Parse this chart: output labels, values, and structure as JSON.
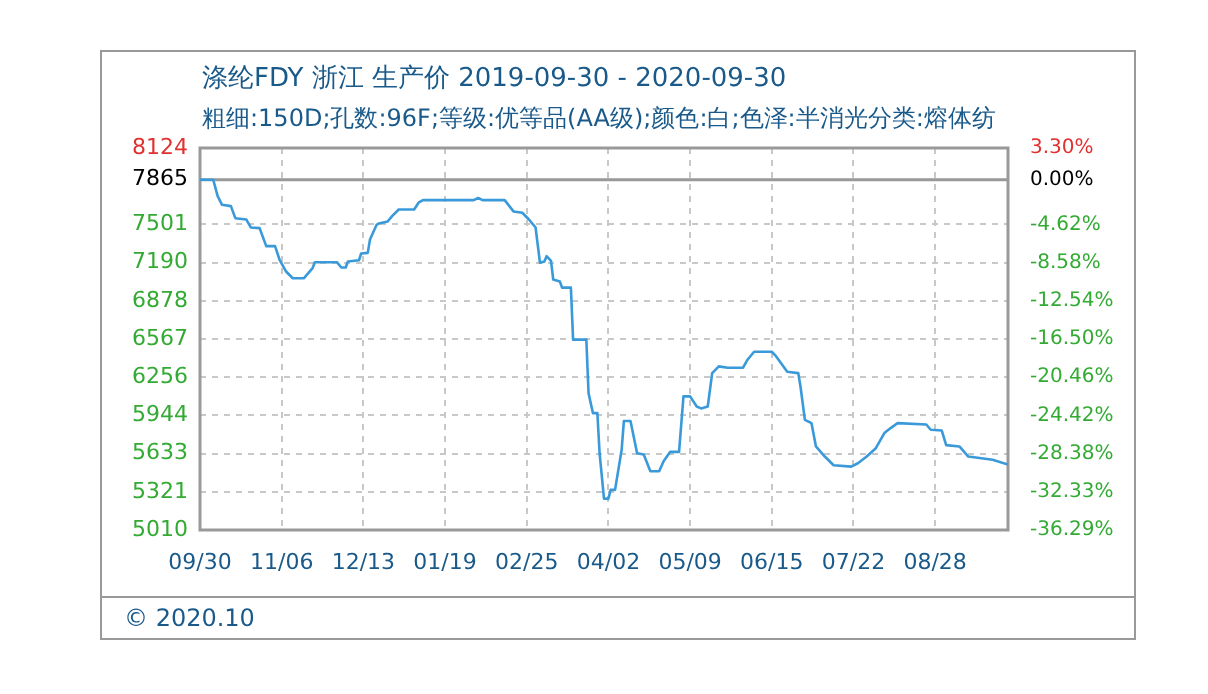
{
  "chart_data": {
    "type": "line",
    "title": "涤纶FDY 浙江 生产价 2019-09-30 - 2020-09-30",
    "subtitle": "粗细:150D;孔数:96F;等级:优等品(AA级);颜色:白;色泽:半消光分类:熔体纺",
    "annotations": [
      "© 2020.10"
    ],
    "x": [
      "2019-09-30",
      "2019-10-06",
      "2019-10-08",
      "2019-10-10",
      "2019-10-14",
      "2019-10-16",
      "2019-10-21",
      "2019-10-23",
      "2019-10-27",
      "2019-10-30",
      "2019-11-03",
      "2019-11-05",
      "2019-11-08",
      "2019-11-11",
      "2019-11-16",
      "2019-11-20",
      "2019-11-21",
      "2019-12-01",
      "2019-12-03",
      "2019-12-05",
      "2019-12-06",
      "2019-12-11",
      "2019-12-12",
      "2019-12-15",
      "2019-12-16",
      "2019-12-19",
      "2019-12-20",
      "2019-12-24",
      "2019-12-26",
      "2019-12-29",
      "2020-01-05",
      "2020-01-07",
      "2020-01-09",
      "2020-02-01",
      "2020-02-03",
      "2020-02-05",
      "2020-02-15",
      "2020-02-19",
      "2020-02-23",
      "2020-02-26",
      "2020-02-29",
      "2020-03-02",
      "2020-03-04",
      "2020-03-05",
      "2020-03-07",
      "2020-03-08",
      "2020-03-11",
      "2020-03-12",
      "2020-03-16",
      "2020-03-17",
      "2020-03-23",
      "2020-03-24",
      "2020-03-25",
      "2020-03-26",
      "2020-03-28",
      "2020-03-29",
      "2020-03-31",
      "2020-04-02",
      "2020-04-03",
      "2020-04-05",
      "2020-04-08",
      "2020-04-09",
      "2020-04-12",
      "2020-04-15",
      "2020-04-18",
      "2020-04-21",
      "2020-04-25",
      "2020-04-27",
      "2020-04-30",
      "2020-05-04",
      "2020-05-06",
      "2020-05-09",
      "2020-05-12",
      "2020-05-14",
      "2020-05-17",
      "2020-05-19",
      "2020-05-22",
      "2020-05-26",
      "2020-06-02",
      "2020-06-04",
      "2020-06-07",
      "2020-06-15",
      "2020-06-17",
      "2020-06-22",
      "2020-06-27",
      "2020-06-28",
      "2020-06-30",
      "2020-07-03",
      "2020-07-05",
      "2020-07-09",
      "2020-07-13",
      "2020-07-21",
      "2020-07-24",
      "2020-07-28",
      "2020-08-01",
      "2020-08-05",
      "2020-08-08",
      "2020-08-11",
      "2020-08-24",
      "2020-08-26",
      "2020-08-31",
      "2020-09-02",
      "2020-09-08",
      "2020-09-12",
      "2020-09-23",
      "2020-09-30"
    ],
    "series": [
      {
        "color": "#3a9ad9",
        "values": [
          7865,
          7865,
          7732,
          7661,
          7650,
          7552,
          7541,
          7476,
          7471,
          7324,
          7324,
          7215,
          7117,
          7062,
          7062,
          7144,
          7193,
          7193,
          7150,
          7150,
          7199,
          7209,
          7264,
          7269,
          7378,
          7498,
          7509,
          7525,
          7569,
          7623,
          7623,
          7678,
          7699,
          7699,
          7716,
          7699,
          7699,
          7607,
          7596,
          7541,
          7476,
          7188,
          7199,
          7242,
          7204,
          7052,
          7035,
          6986,
          6986,
          6562,
          6562,
          6126,
          6044,
          5963,
          5963,
          5636,
          5266,
          5266,
          5337,
          5337,
          5664,
          5898,
          5898,
          5636,
          5625,
          5489,
          5489,
          5571,
          5647,
          5647,
          6099,
          6099,
          6017,
          6001,
          6017,
          6289,
          6344,
          6333,
          6333,
          6398,
          6463,
          6463,
          6425,
          6300,
          6289,
          6180,
          5908,
          5881,
          5691,
          5609,
          5538,
          5527,
          5554,
          5609,
          5674,
          5800,
          5843,
          5881,
          5870,
          5827,
          5821,
          5702,
          5691,
          5609,
          5582,
          5544
        ]
      }
    ],
    "xlim": [
      "2019-09-30",
      "2020-09-30"
    ],
    "xticks": [
      {
        "value": "2019-09-30",
        "label": "09/30"
      },
      {
        "value": "2019-11-06",
        "label": "11/06"
      },
      {
        "value": "2019-12-13",
        "label": "12/13"
      },
      {
        "value": "2020-01-19",
        "label": "01/19"
      },
      {
        "value": "2020-02-25",
        "label": "02/25"
      },
      {
        "value": "2020-04-02",
        "label": "04/02"
      },
      {
        "value": "2020-05-09",
        "label": "05/09"
      },
      {
        "value": "2020-06-15",
        "label": "06/15"
      },
      {
        "value": "2020-07-22",
        "label": "07/22"
      },
      {
        "value": "2020-08-28",
        "label": "08/28"
      }
    ],
    "ylim": [
      5010,
      8124
    ],
    "yticks": [
      5010,
      5321,
      5633,
      5944,
      6256,
      6567,
      6878,
      7190,
      7501,
      7865,
      8124
    ],
    "y2lim": [
      -36.29,
      3.3
    ],
    "y2ticks": [
      {
        "value": -36.29,
        "label": "-36.29%"
      },
      {
        "value": -32.33,
        "label": "-32.33%"
      },
      {
        "value": -28.38,
        "label": "-28.38%"
      },
      {
        "value": -24.42,
        "label": "-24.42%"
      },
      {
        "value": -20.46,
        "label": "-20.46%"
      },
      {
        "value": -16.5,
        "label": "-16.50%"
      },
      {
        "value": -12.54,
        "label": "-12.54%"
      },
      {
        "value": -8.58,
        "label": "-8.58%"
      },
      {
        "value": -4.62,
        "label": "-4.62%"
      },
      {
        "value": 0,
        "label": "0.00%"
      },
      {
        "value": 3.3,
        "label": "3.30%"
      }
    ],
    "ref_lines": [
      {
        "axis": "y",
        "value": 7865,
        "color": "#999999",
        "line_style": "solid"
      }
    ],
    "grid": true,
    "legend": false,
    "marker": "none",
    "line_style": "solid"
  }
}
